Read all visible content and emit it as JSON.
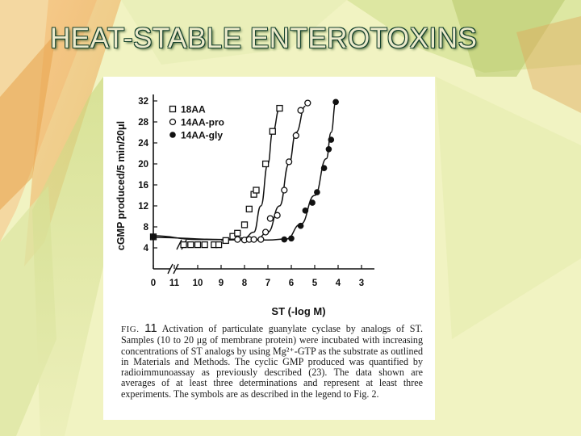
{
  "slide": {
    "title": "HEAT-STABLE ENTEROTOXINS"
  },
  "colors": {
    "background": "#f1f3c2",
    "title_fill": "#eceacb",
    "title_outline": "#14402c",
    "figure_ink": "#111111"
  },
  "caption": {
    "label": "FIG.",
    "number": "11",
    "text": "Activation of particulate guanylate cyclase by analogs of ST. Samples (10 to 20 μg of membrane protein) were incubated with increasing concentrations of ST analogs by using Mg²⁺-GTP as the substrate as outlined in Materials and Methods. The cyclic GMP produced was quantified by radioimmunoassay as previously described (23). The data shown are averages of at least three determinations and represent at least three experiments. The symbols are as described in the legend to Fig. 2."
  },
  "chart_data": {
    "type": "scatter",
    "xlabel": "ST (-log M)",
    "ylabel": "cGMP produced/5 min/20μl",
    "x_axis_reversed": true,
    "x_axis_break": "between 0 and 11",
    "xlim": [
      12,
      2.5
    ],
    "ylim": [
      0,
      32
    ],
    "x_ticks": [
      0,
      11,
      10,
      9,
      8,
      7,
      6,
      5,
      4,
      3
    ],
    "y_ticks": [
      4,
      8,
      12,
      16,
      20,
      24,
      28,
      32
    ],
    "grid": false,
    "legend_position": "top-left",
    "series": [
      {
        "name": "18AA",
        "marker": "open-square",
        "points": [
          [
            0,
            6.1
          ],
          [
            10.6,
            4.6
          ],
          [
            10.3,
            4.6
          ],
          [
            10.0,
            4.6
          ],
          [
            9.7,
            4.6
          ],
          [
            9.3,
            4.6
          ],
          [
            9.1,
            4.6
          ],
          [
            8.8,
            5.4
          ],
          [
            8.5,
            6.2
          ],
          [
            8.3,
            6.8
          ],
          [
            8.0,
            8.4
          ],
          [
            7.8,
            11.4
          ],
          [
            7.6,
            14.2
          ],
          [
            7.5,
            15.0
          ],
          [
            7.1,
            20.0
          ],
          [
            6.8,
            26.2
          ],
          [
            6.5,
            30.6
          ]
        ]
      },
      {
        "name": "14AA-pro",
        "marker": "open-circle",
        "points": [
          [
            8.3,
            5.6
          ],
          [
            8.0,
            5.5
          ],
          [
            7.8,
            5.6
          ],
          [
            7.6,
            5.6
          ],
          [
            7.3,
            5.6
          ],
          [
            7.1,
            7.0
          ],
          [
            6.9,
            9.6
          ],
          [
            6.6,
            10.2
          ],
          [
            6.3,
            15.0
          ],
          [
            6.1,
            20.4
          ],
          [
            5.8,
            25.4
          ],
          [
            5.6,
            30.2
          ],
          [
            5.3,
            31.6
          ]
        ]
      },
      {
        "name": "14AA-gly",
        "marker": "filled-circle",
        "points": [
          [
            0,
            6.1
          ],
          [
            6.3,
            5.6
          ],
          [
            6.0,
            5.8
          ],
          [
            5.6,
            8.2
          ],
          [
            5.4,
            11.1
          ],
          [
            5.1,
            12.6
          ],
          [
            4.9,
            14.6
          ],
          [
            4.6,
            19.2
          ],
          [
            4.4,
            22.8
          ],
          [
            4.3,
            24.6
          ],
          [
            4.1,
            31.8
          ]
        ]
      }
    ],
    "curves": [
      {
        "series": "18AA",
        "points": [
          [
            0,
            6.0
          ],
          [
            9.0,
            5.6
          ],
          [
            8.0,
            5.9
          ],
          [
            7.6,
            7.0
          ],
          [
            7.3,
            12.0
          ],
          [
            7.0,
            20.0
          ],
          [
            6.8,
            26.0
          ],
          [
            6.5,
            30.6
          ]
        ]
      },
      {
        "series": "14AA-pro",
        "points": [
          [
            9.0,
            5.5
          ],
          [
            7.5,
            5.6
          ],
          [
            7.0,
            7.0
          ],
          [
            6.5,
            12.0
          ],
          [
            6.1,
            20.0
          ],
          [
            5.8,
            26.0
          ],
          [
            5.4,
            31.0
          ]
        ]
      },
      {
        "series": "14AA-gly",
        "points": [
          [
            0,
            6.3
          ],
          [
            10,
            5.6
          ],
          [
            7.0,
            5.5
          ],
          [
            6.2,
            5.7
          ],
          [
            5.6,
            8.5
          ],
          [
            5.0,
            14.0
          ],
          [
            4.5,
            21.0
          ],
          [
            4.3,
            26.0
          ],
          [
            4.1,
            31.8
          ]
        ]
      }
    ]
  }
}
